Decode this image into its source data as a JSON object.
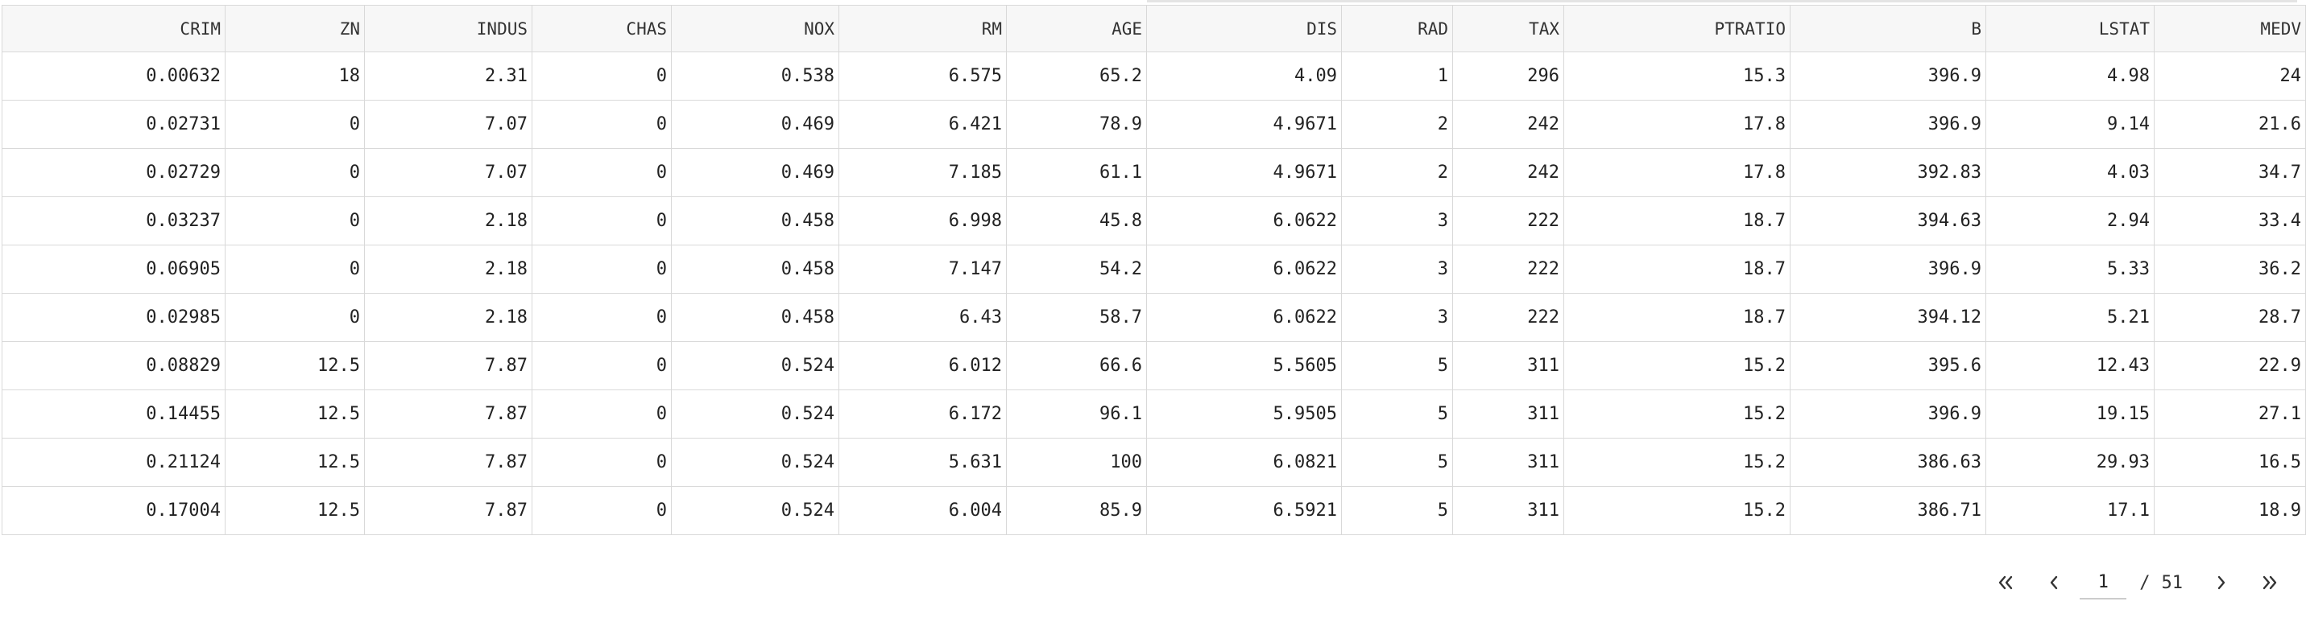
{
  "table": {
    "columns": [
      "CRIM",
      "ZN",
      "INDUS",
      "CHAS",
      "NOX",
      "RM",
      "AGE",
      "DIS",
      "RAD",
      "TAX",
      "PTRATIO",
      "B",
      "LSTAT",
      "MEDV"
    ],
    "rows": [
      [
        "0.00632",
        "18",
        "2.31",
        "0",
        "0.538",
        "6.575",
        "65.2",
        "4.09",
        "1",
        "296",
        "15.3",
        "396.9",
        "4.98",
        "24"
      ],
      [
        "0.02731",
        "0",
        "7.07",
        "0",
        "0.469",
        "6.421",
        "78.9",
        "4.9671",
        "2",
        "242",
        "17.8",
        "396.9",
        "9.14",
        "21.6"
      ],
      [
        "0.02729",
        "0",
        "7.07",
        "0",
        "0.469",
        "7.185",
        "61.1",
        "4.9671",
        "2",
        "242",
        "17.8",
        "392.83",
        "4.03",
        "34.7"
      ],
      [
        "0.03237",
        "0",
        "2.18",
        "0",
        "0.458",
        "6.998",
        "45.8",
        "6.0622",
        "3",
        "222",
        "18.7",
        "394.63",
        "2.94",
        "33.4"
      ],
      [
        "0.06905",
        "0",
        "2.18",
        "0",
        "0.458",
        "7.147",
        "54.2",
        "6.0622",
        "3",
        "222",
        "18.7",
        "396.9",
        "5.33",
        "36.2"
      ],
      [
        "0.02985",
        "0",
        "2.18",
        "0",
        "0.458",
        "6.43",
        "58.7",
        "6.0622",
        "3",
        "222",
        "18.7",
        "394.12",
        "5.21",
        "28.7"
      ],
      [
        "0.08829",
        "12.5",
        "7.87",
        "0",
        "0.524",
        "6.012",
        "66.6",
        "5.5605",
        "5",
        "311",
        "15.2",
        "395.6",
        "12.43",
        "22.9"
      ],
      [
        "0.14455",
        "12.5",
        "7.87",
        "0",
        "0.524",
        "6.172",
        "96.1",
        "5.9505",
        "5",
        "311",
        "15.2",
        "396.9",
        "19.15",
        "27.1"
      ],
      [
        "0.21124",
        "12.5",
        "7.87",
        "0",
        "0.524",
        "5.631",
        "100",
        "6.0821",
        "5",
        "311",
        "15.2",
        "386.63",
        "29.93",
        "16.5"
      ],
      [
        "0.17004",
        "12.5",
        "7.87",
        "0",
        "0.524",
        "6.004",
        "85.9",
        "6.5921",
        "5",
        "311",
        "15.2",
        "386.71",
        "17.1",
        "18.9"
      ]
    ]
  },
  "pagination": {
    "current_page": "1",
    "separator": "/",
    "total_pages": "51",
    "icons": {
      "first": "double-chevron-left-icon",
      "prev": "chevron-left-icon",
      "next": "chevron-right-icon",
      "last": "double-chevron-right-icon"
    }
  }
}
